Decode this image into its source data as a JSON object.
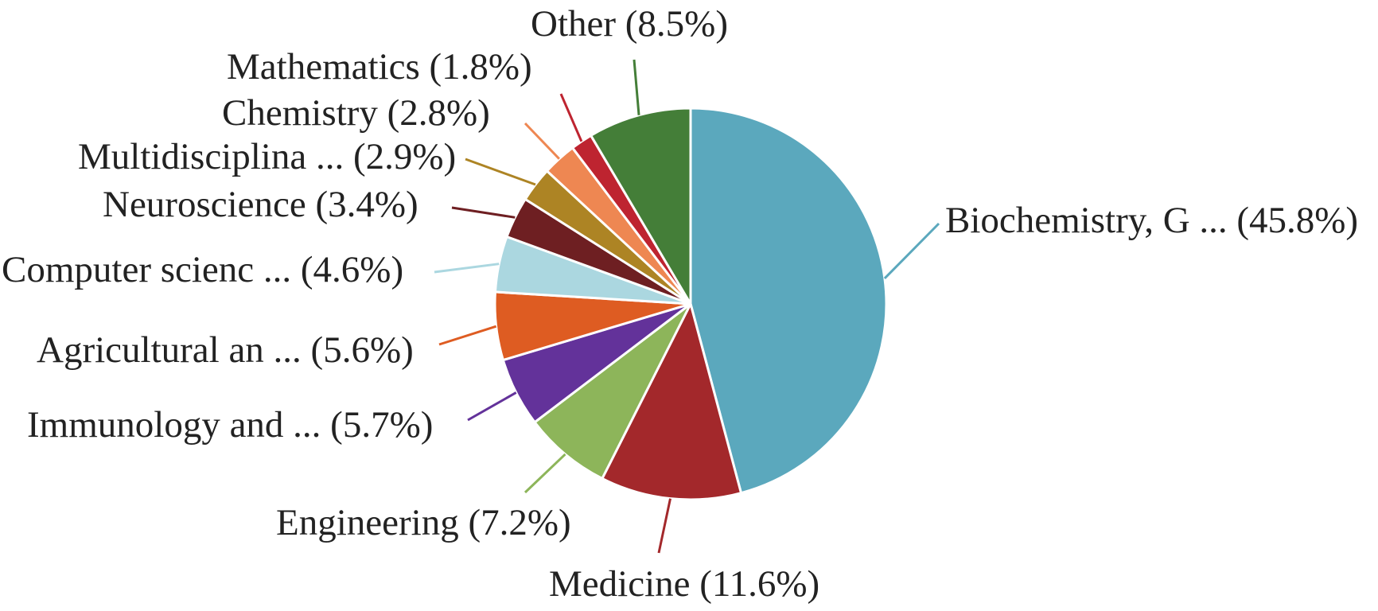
{
  "chart_data": {
    "type": "pie",
    "start_angle_deg": 0,
    "direction": "clockwise",
    "slices": [
      {
        "label": "Biochemistry, G ... (45.8%)",
        "value": 45.8,
        "color": "#5BA8BD"
      },
      {
        "label": "Medicine (11.6%)",
        "value": 11.6,
        "color": "#A3282B"
      },
      {
        "label": "Engineering (7.2%)",
        "value": 7.2,
        "color": "#8DB55A"
      },
      {
        "label": "Immunology and ... (5.7%)",
        "value": 5.7,
        "color": "#63329A"
      },
      {
        "label": "Agricultural an ... (5.6%)",
        "value": 5.6,
        "color": "#DE5C22"
      },
      {
        "label": "Computer scienc ... (4.6%)",
        "value": 4.6,
        "color": "#ABD7E0"
      },
      {
        "label": "Neuroscience (3.4%)",
        "value": 3.4,
        "color": "#6E1F22"
      },
      {
        "label": "Multidisciplina ... (2.9%)",
        "value": 2.9,
        "color": "#AD8424"
      },
      {
        "label": "Chemistry (2.8%)",
        "value": 2.8,
        "color": "#EE8752"
      },
      {
        "label": "Mathematics (1.8%)",
        "value": 1.8,
        "color": "#BE2430"
      },
      {
        "label": "Other (8.5%)",
        "value": 8.5,
        "color": "#447E38"
      }
    ]
  }
}
